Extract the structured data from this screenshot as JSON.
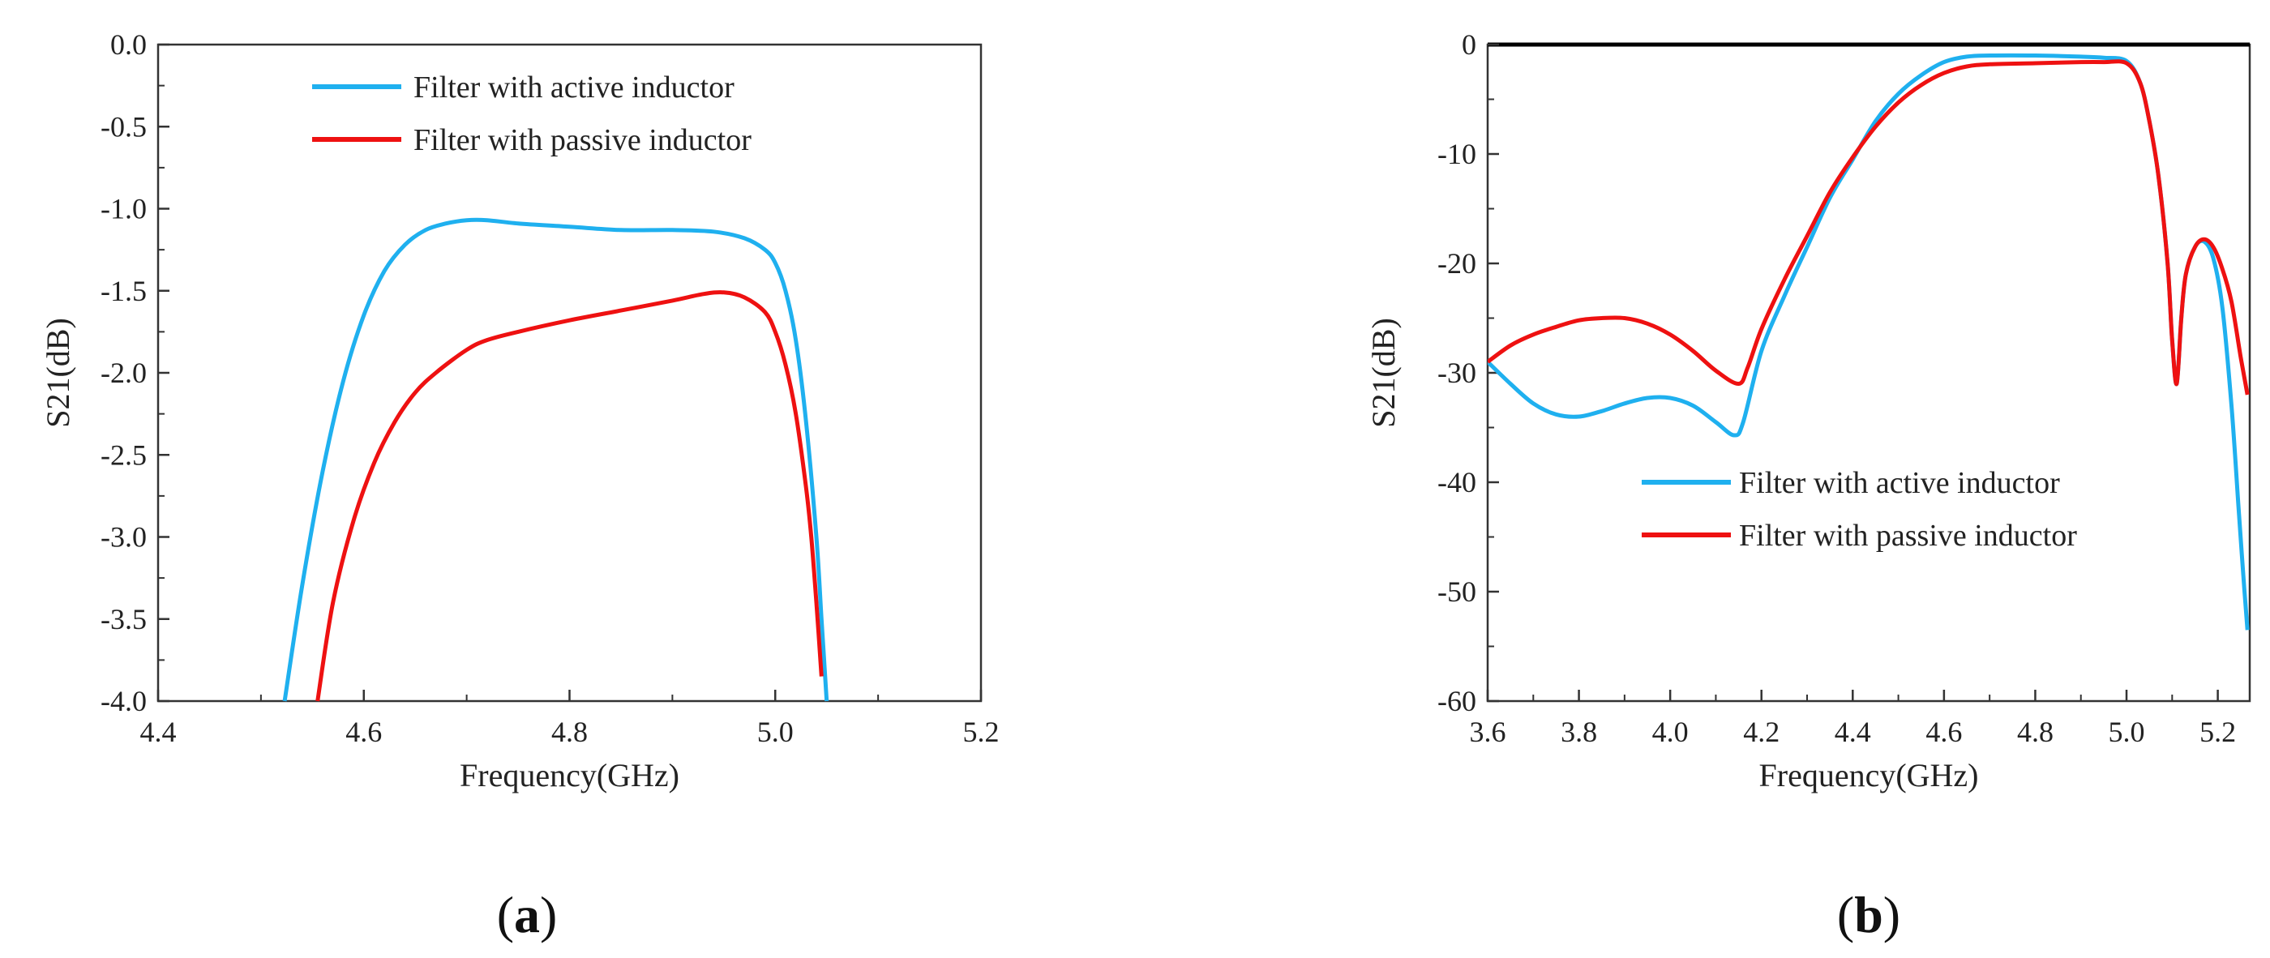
{
  "chart_data": [
    {
      "panel": "(a)",
      "panel_letter": "a",
      "type": "line",
      "xlabel": "Frequency(GHz)",
      "ylabel": "S21(dB)",
      "xlim": [
        4.4,
        5.2
      ],
      "ylim": [
        -4.0,
        0.0
      ],
      "xticks": [
        "4.4",
        "4.6",
        "4.8",
        "5.0",
        "5.2"
      ],
      "yticks": [
        "0.0",
        "-0.5",
        "-1.0",
        "-1.5",
        "-2.0",
        "-2.5",
        "-3.0",
        "-3.5",
        "-4.0"
      ],
      "legend_position": "top-center",
      "series": [
        {
          "name": "Filter with active inductor",
          "color": "#1fb0ef",
          "x": [
            4.523,
            4.54,
            4.56,
            4.58,
            4.6,
            4.62,
            4.64,
            4.66,
            4.68,
            4.7,
            4.72,
            4.75,
            4.8,
            4.85,
            4.9,
            4.94,
            4.97,
            4.99,
            5.0,
            5.01,
            5.02,
            5.03,
            5.04,
            5.045,
            5.05
          ],
          "y": [
            -4.0,
            -3.3,
            -2.6,
            -2.05,
            -1.65,
            -1.38,
            -1.22,
            -1.13,
            -1.09,
            -1.07,
            -1.07,
            -1.09,
            -1.11,
            -1.13,
            -1.13,
            -1.14,
            -1.18,
            -1.25,
            -1.33,
            -1.5,
            -1.8,
            -2.3,
            -3.0,
            -3.5,
            -4.0
          ]
        },
        {
          "name": "Filter with passive inductor",
          "color": "#ee1111",
          "x": [
            4.555,
            4.57,
            4.59,
            4.61,
            4.63,
            4.65,
            4.67,
            4.7,
            4.72,
            4.75,
            4.8,
            4.85,
            4.9,
            4.93,
            4.95,
            4.97,
            4.99,
            5.0,
            5.01,
            5.02,
            5.03,
            5.035,
            5.04,
            5.045
          ],
          "y": [
            -4.0,
            -3.4,
            -2.9,
            -2.55,
            -2.3,
            -2.12,
            -2.0,
            -1.86,
            -1.8,
            -1.75,
            -1.68,
            -1.62,
            -1.56,
            -1.52,
            -1.51,
            -1.54,
            -1.63,
            -1.75,
            -1.95,
            -2.25,
            -2.7,
            -3.0,
            -3.4,
            -3.85
          ]
        }
      ]
    },
    {
      "panel": "(b)",
      "panel_letter": "b",
      "type": "line",
      "xlabel": "Frequency(GHz)",
      "ylabel": "S21(dB)",
      "xlim": [
        3.6,
        5.27
      ],
      "ylim": [
        -60,
        0
      ],
      "xticks": [
        "3.6",
        "3.8",
        "4.0",
        "4.2",
        "4.4",
        "4.6",
        "4.8",
        "5.0",
        "5.2"
      ],
      "yticks": [
        "0",
        "-10",
        "-20",
        "-30",
        "-40",
        "-50",
        "-60"
      ],
      "legend_position": "center-right",
      "series": [
        {
          "name": "Filter with active inductor",
          "color": "#1fb0ef",
          "x": [
            3.6,
            3.65,
            3.7,
            3.75,
            3.8,
            3.85,
            3.9,
            3.95,
            4.0,
            4.05,
            4.1,
            4.14,
            4.16,
            4.2,
            4.25,
            4.3,
            4.35,
            4.4,
            4.45,
            4.5,
            4.55,
            4.6,
            4.65,
            4.7,
            4.8,
            4.9,
            4.95,
            5.0,
            5.03,
            5.05,
            5.07,
            5.09,
            5.1,
            5.11,
            5.12,
            5.13,
            5.15,
            5.17,
            5.19,
            5.21,
            5.23,
            5.245,
            5.255,
            5.265
          ],
          "y": [
            -29,
            -31,
            -32.8,
            -33.8,
            -34,
            -33.5,
            -32.8,
            -32.3,
            -32.3,
            -33,
            -34.5,
            -35.7,
            -34.5,
            -28,
            -23,
            -18.5,
            -14,
            -10.5,
            -7,
            -4.5,
            -2.8,
            -1.6,
            -1.1,
            -1,
            -1,
            -1.1,
            -1.2,
            -1.5,
            -3.5,
            -7,
            -12,
            -20,
            -27,
            -31,
            -25,
            -21,
            -18.5,
            -18,
            -19.5,
            -24,
            -33,
            -42,
            -48,
            -53.5
          ]
        },
        {
          "name": "Filter with passive inductor",
          "color": "#ee1111",
          "x": [
            3.6,
            3.65,
            3.7,
            3.75,
            3.8,
            3.85,
            3.9,
            3.95,
            4.0,
            4.05,
            4.1,
            4.15,
            4.17,
            4.2,
            4.25,
            4.3,
            4.35,
            4.4,
            4.45,
            4.5,
            4.55,
            4.6,
            4.65,
            4.7,
            4.8,
            4.9,
            4.95,
            5.0,
            5.03,
            5.05,
            5.07,
            5.09,
            5.1,
            5.11,
            5.12,
            5.13,
            5.15,
            5.17,
            5.19,
            5.21,
            5.23,
            5.25,
            5.265
          ],
          "y": [
            -29,
            -27.5,
            -26.5,
            -25.8,
            -25.2,
            -25,
            -25,
            -25.5,
            -26.5,
            -28,
            -29.8,
            -31,
            -29.5,
            -26,
            -21.5,
            -17.5,
            -13.5,
            -10.3,
            -7.5,
            -5.3,
            -3.7,
            -2.6,
            -2,
            -1.8,
            -1.7,
            -1.6,
            -1.6,
            -1.7,
            -3.5,
            -7,
            -12,
            -20,
            -27,
            -31,
            -25,
            -21,
            -18.5,
            -17.8,
            -18.5,
            -20.5,
            -23.5,
            -28.5,
            -32
          ]
        }
      ]
    }
  ]
}
